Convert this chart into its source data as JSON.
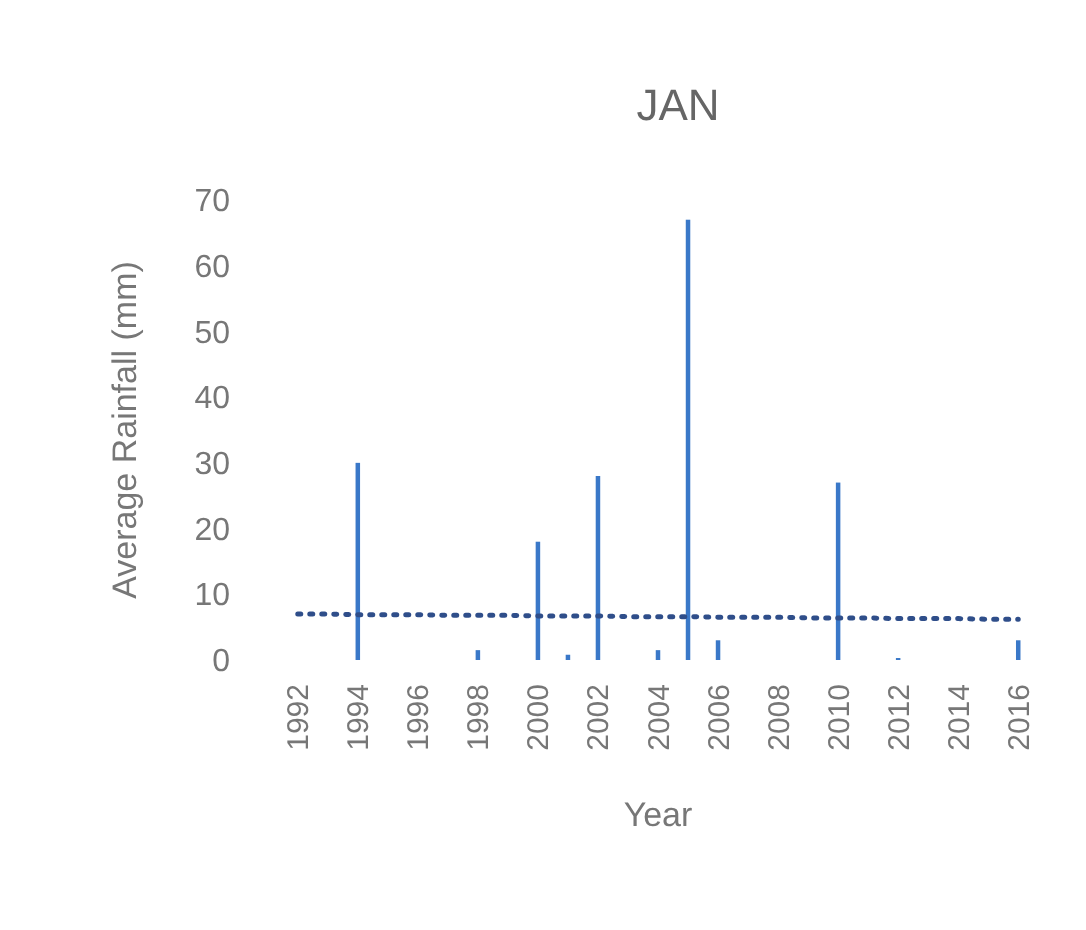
{
  "chart_data": {
    "type": "bar",
    "title": "JAN",
    "xlabel": "Year",
    "ylabel": "Average Rainfall (mm)",
    "categories": [
      "1992",
      null,
      "1994",
      null,
      "1996",
      null,
      "1998",
      null,
      "2000",
      null,
      "2002",
      null,
      "2004",
      null,
      "2006",
      null,
      "2008",
      null,
      "2010",
      null,
      "2012",
      null,
      "2014",
      null,
      "2016"
    ],
    "series": [
      {
        "color": "#3a78c8",
        "values": [
          0,
          0,
          30,
          0,
          0,
          0,
          1.5,
          0,
          18,
          0.8,
          28,
          0,
          1.5,
          67,
          3,
          0,
          0,
          0,
          27,
          0,
          0.3,
          0,
          0,
          0,
          3
        ]
      },
      {
        "type": "line",
        "color": "#2f4e8a",
        "line_style": "dotted",
        "values": [
          7.0,
          7.0,
          6.9,
          6.9,
          6.9,
          6.8,
          6.8,
          6.8,
          6.7,
          6.7,
          6.7,
          6.6,
          6.6,
          6.6,
          6.5,
          6.5,
          6.5,
          6.4,
          6.4,
          6.4,
          6.3,
          6.3,
          6.3,
          6.2,
          6.2
        ]
      }
    ],
    "ylim": [
      0,
      70
    ],
    "yticks": [
      0,
      10,
      20,
      30,
      40,
      50,
      60,
      70
    ]
  }
}
